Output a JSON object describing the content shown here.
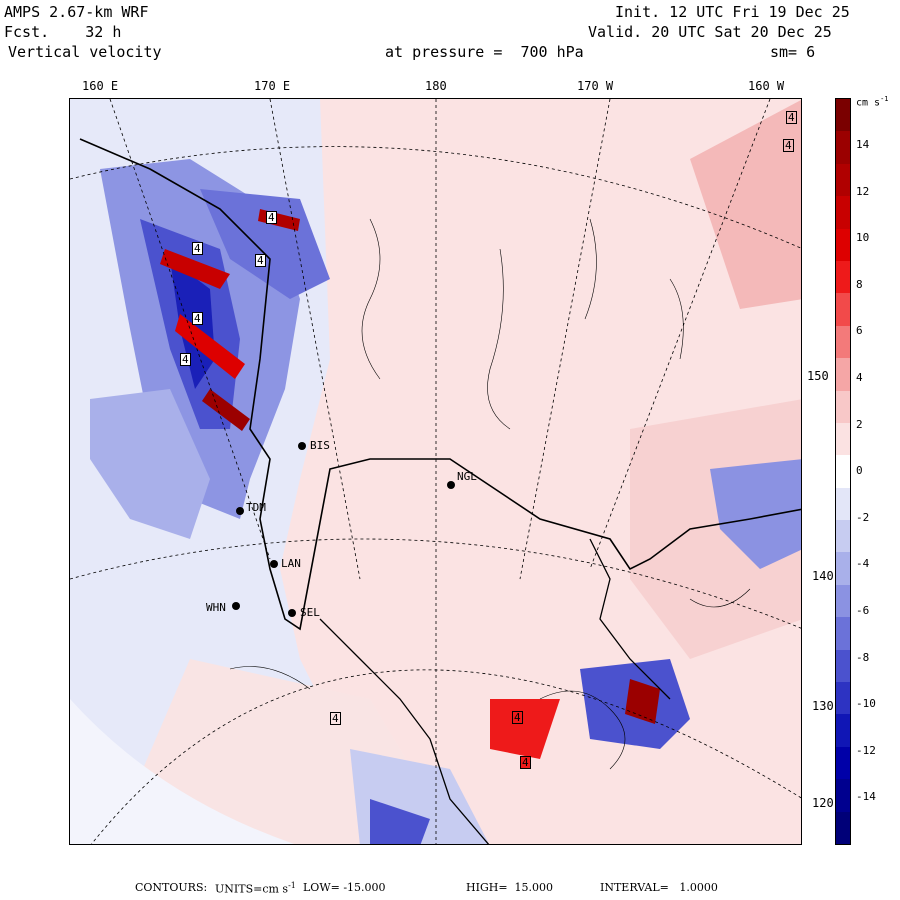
{
  "header": {
    "model": "AMPS 2.67-km WRF",
    "forecast": "Fcst.    32 h",
    "field": "Vertical velocity",
    "init": "Init. 12 UTC Fri 19 Dec 25",
    "valid": "Valid. 20 UTC Sat 20 Dec 25",
    "pressure_label": "at pressure =  700 hPa",
    "smoothing": "sm= 6"
  },
  "longitude_labels": [
    "160 E",
    "170 E",
    "180",
    "170 W",
    "160 W"
  ],
  "latitude_labels": [
    "150 W",
    "140 W",
    "130 W",
    "120 W"
  ],
  "stations": [
    "BIS",
    "NGL",
    "TDM",
    "LAN",
    "WHN",
    "SEL"
  ],
  "colorbar": {
    "units": "cm s",
    "units_exp": "-1",
    "ticks": [
      "14",
      "12",
      "10",
      "8",
      "6",
      "4",
      "2",
      "0",
      "-2",
      "-4",
      "-6",
      "-8",
      "-10",
      "-12",
      "-14"
    ],
    "colors": [
      "#7a0000",
      "#9b0000",
      "#b00000",
      "#c80000",
      "#dd0000",
      "#ee1a1a",
      "#f24a4a",
      "#f37a7a",
      "#f5a6a6",
      "#f8c8c8",
      "#fbe2e2",
      "#ffffff",
      "#e3e6f8",
      "#c7ccf1",
      "#a9b0ea",
      "#8b92e2",
      "#6b72d9",
      "#4b52ce",
      "#2d33c2",
      "#1016b5",
      "#0000a8",
      "#00008f",
      "#000078"
    ]
  },
  "contour_labels": [
    "4",
    "4",
    "4",
    "4",
    "4",
    "4",
    "4",
    "4",
    "4",
    "4"
  ],
  "footer": {
    "contours": "CONTOURS:",
    "units_label": "UNITS=cm s",
    "units_exp": "-1",
    "low": "LOW= -15.000",
    "high": "HIGH=  15.000",
    "interval": "INTERVAL=   1.0000"
  }
}
